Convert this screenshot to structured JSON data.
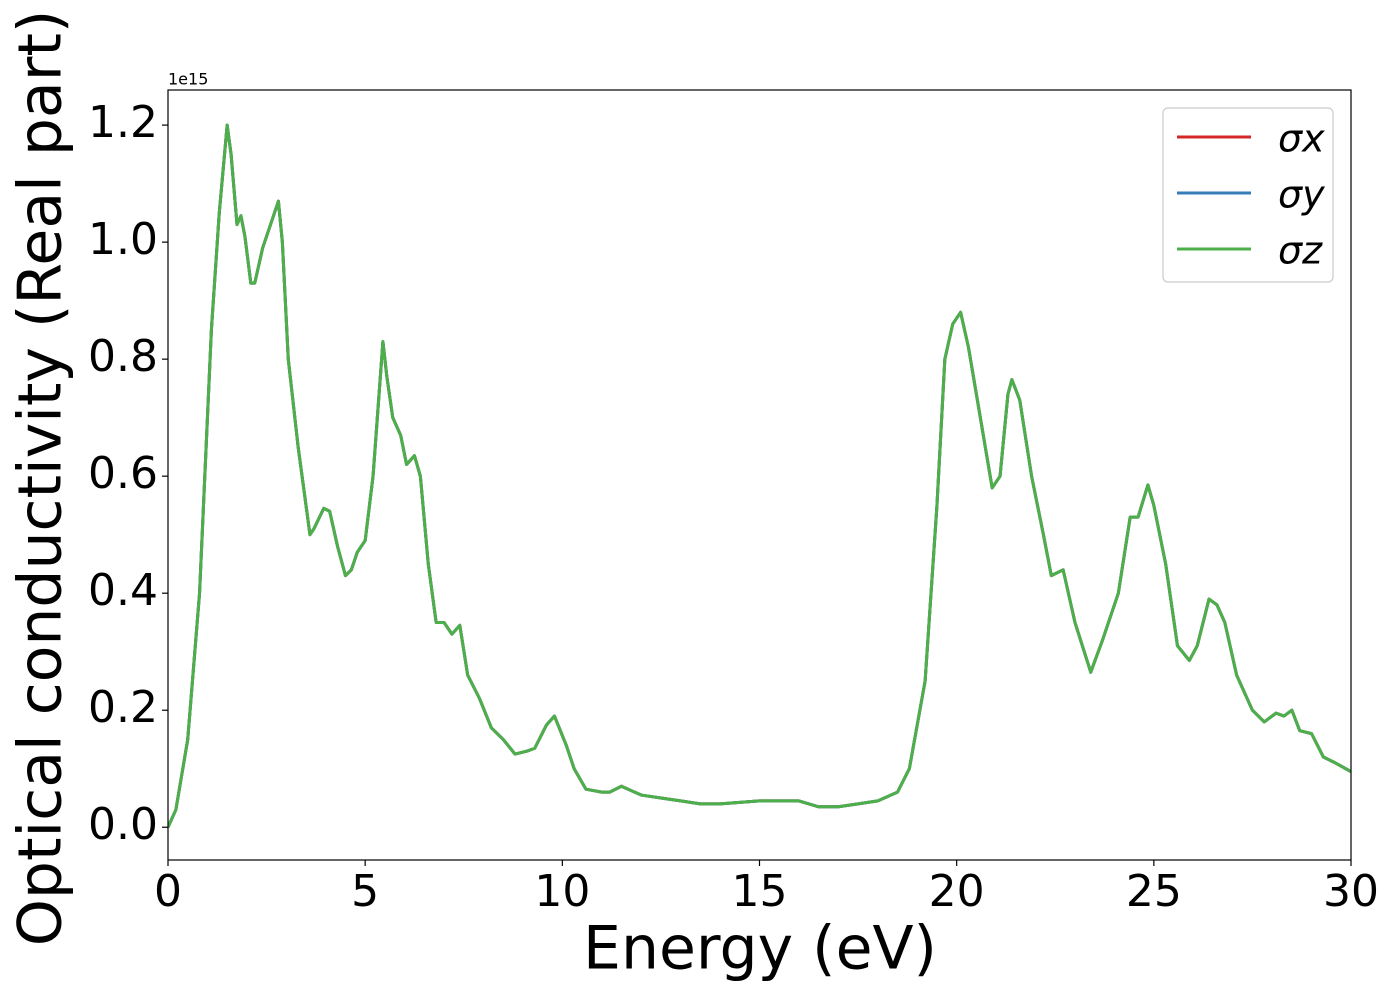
{
  "chart_data": {
    "type": "line",
    "xlabel": "Energy (eV)",
    "ylabel": "Optical conductivity (Real part)",
    "y_offset_label": "1e15",
    "x": [
      0,
      0.2,
      0.5,
      0.8,
      1.1,
      1.3,
      1.5,
      1.6,
      1.75,
      1.85,
      1.95,
      2.1,
      2.2,
      2.4,
      2.6,
      2.8,
      2.9,
      3.05,
      3.3,
      3.6,
      3.7,
      3.95,
      4.1,
      4.3,
      4.5,
      4.65,
      4.8,
      5.0,
      5.2,
      5.45,
      5.55,
      5.7,
      5.9,
      6.05,
      6.25,
      6.4,
      6.6,
      6.8,
      7.0,
      7.2,
      7.4,
      7.6,
      7.9,
      8.2,
      8.5,
      8.8,
      9.1,
      9.3,
      9.6,
      9.8,
      10.1,
      10.3,
      10.6,
      11.0,
      11.2,
      11.5,
      12.0,
      12.5,
      13.0,
      13.5,
      14.0,
      15.0,
      16.0,
      16.5,
      17.0,
      17.5,
      18.0,
      18.5,
      18.8,
      19.2,
      19.5,
      19.7,
      19.9,
      20.1,
      20.3,
      20.6,
      20.9,
      21.1,
      21.3,
      21.4,
      21.6,
      21.9,
      22.2,
      22.4,
      22.7,
      23.0,
      23.4,
      23.7,
      24.1,
      24.4,
      24.6,
      24.85,
      25.0,
      25.3,
      25.6,
      25.9,
      26.1,
      26.4,
      26.6,
      26.8,
      27.1,
      27.5,
      27.8,
      28.1,
      28.3,
      28.5,
      28.7,
      29.0,
      29.3,
      29.6,
      30
    ],
    "series": [
      {
        "name": "σx",
        "color": "#d62728",
        "values": [
          0,
          0.03,
          0.15,
          0.4,
          0.85,
          1.05,
          1.2,
          1.15,
          1.03,
          1.045,
          1.01,
          0.93,
          0.93,
          0.99,
          1.03,
          1.07,
          1.0,
          0.8,
          0.65,
          0.5,
          0.51,
          0.545,
          0.54,
          0.48,
          0.43,
          0.44,
          0.47,
          0.49,
          0.6,
          0.83,
          0.77,
          0.7,
          0.67,
          0.62,
          0.635,
          0.6,
          0.45,
          0.35,
          0.35,
          0.33,
          0.345,
          0.26,
          0.22,
          0.17,
          0.15,
          0.125,
          0.13,
          0.135,
          0.175,
          0.19,
          0.14,
          0.1,
          0.065,
          0.06,
          0.06,
          0.07,
          0.055,
          0.05,
          0.045,
          0.04,
          0.04,
          0.045,
          0.045,
          0.035,
          0.035,
          0.04,
          0.045,
          0.06,
          0.1,
          0.25,
          0.55,
          0.8,
          0.86,
          0.88,
          0.82,
          0.7,
          0.58,
          0.6,
          0.74,
          0.765,
          0.73,
          0.6,
          0.5,
          0.43,
          0.44,
          0.35,
          0.265,
          0.32,
          0.4,
          0.53,
          0.53,
          0.585,
          0.55,
          0.45,
          0.31,
          0.285,
          0.31,
          0.39,
          0.38,
          0.35,
          0.26,
          0.2,
          0.18,
          0.195,
          0.19,
          0.2,
          0.165,
          0.16,
          0.12,
          0.11,
          0.095
        ]
      },
      {
        "name": "σy",
        "color": "#377eb8",
        "values": [
          0,
          0.03,
          0.15,
          0.4,
          0.85,
          1.05,
          1.2,
          1.15,
          1.03,
          1.045,
          1.01,
          0.93,
          0.93,
          0.99,
          1.03,
          1.07,
          1.0,
          0.8,
          0.65,
          0.5,
          0.51,
          0.545,
          0.54,
          0.48,
          0.43,
          0.44,
          0.47,
          0.49,
          0.6,
          0.83,
          0.77,
          0.7,
          0.67,
          0.62,
          0.635,
          0.6,
          0.45,
          0.35,
          0.35,
          0.33,
          0.345,
          0.26,
          0.22,
          0.17,
          0.15,
          0.125,
          0.13,
          0.135,
          0.175,
          0.19,
          0.14,
          0.1,
          0.065,
          0.06,
          0.06,
          0.07,
          0.055,
          0.05,
          0.045,
          0.04,
          0.04,
          0.045,
          0.045,
          0.035,
          0.035,
          0.04,
          0.045,
          0.06,
          0.1,
          0.25,
          0.55,
          0.8,
          0.86,
          0.88,
          0.82,
          0.7,
          0.58,
          0.6,
          0.74,
          0.765,
          0.73,
          0.6,
          0.5,
          0.43,
          0.44,
          0.35,
          0.265,
          0.32,
          0.4,
          0.53,
          0.53,
          0.585,
          0.55,
          0.45,
          0.31,
          0.285,
          0.31,
          0.39,
          0.38,
          0.35,
          0.26,
          0.2,
          0.18,
          0.195,
          0.19,
          0.2,
          0.165,
          0.16,
          0.12,
          0.11,
          0.095
        ]
      },
      {
        "name": "σz",
        "color": "#4daf4a",
        "values": [
          0,
          0.03,
          0.15,
          0.4,
          0.85,
          1.05,
          1.2,
          1.15,
          1.03,
          1.045,
          1.01,
          0.93,
          0.93,
          0.99,
          1.03,
          1.07,
          1.0,
          0.8,
          0.65,
          0.5,
          0.51,
          0.545,
          0.54,
          0.48,
          0.43,
          0.44,
          0.47,
          0.49,
          0.6,
          0.83,
          0.77,
          0.7,
          0.67,
          0.62,
          0.635,
          0.6,
          0.45,
          0.35,
          0.35,
          0.33,
          0.345,
          0.26,
          0.22,
          0.17,
          0.15,
          0.125,
          0.13,
          0.135,
          0.175,
          0.19,
          0.14,
          0.1,
          0.065,
          0.06,
          0.06,
          0.07,
          0.055,
          0.05,
          0.045,
          0.04,
          0.04,
          0.045,
          0.045,
          0.035,
          0.035,
          0.04,
          0.045,
          0.06,
          0.1,
          0.25,
          0.55,
          0.8,
          0.86,
          0.88,
          0.82,
          0.7,
          0.58,
          0.6,
          0.74,
          0.765,
          0.73,
          0.6,
          0.5,
          0.43,
          0.44,
          0.35,
          0.265,
          0.32,
          0.4,
          0.53,
          0.53,
          0.585,
          0.55,
          0.45,
          0.31,
          0.285,
          0.31,
          0.39,
          0.38,
          0.35,
          0.26,
          0.2,
          0.18,
          0.195,
          0.19,
          0.2,
          0.165,
          0.16,
          0.12,
          0.11,
          0.095
        ]
      }
    ],
    "xlim": [
      0,
      30
    ],
    "xticks": [
      0,
      5,
      10,
      15,
      20,
      25,
      30
    ],
    "ylim": [
      -0.056,
      1.26
    ],
    "yticks": [
      {
        "value": 0,
        "label": "0.0"
      },
      {
        "value": 0.2,
        "label": "0.2"
      },
      {
        "value": 0.4,
        "label": "0.4"
      },
      {
        "value": 0.6,
        "label": "0.6"
      },
      {
        "value": 0.8,
        "label": "0.8"
      },
      {
        "value": 1.0,
        "label": "1.0"
      },
      {
        "value": 1.2,
        "label": "1.2"
      }
    ],
    "legend": "upper right",
    "grid": false
  }
}
